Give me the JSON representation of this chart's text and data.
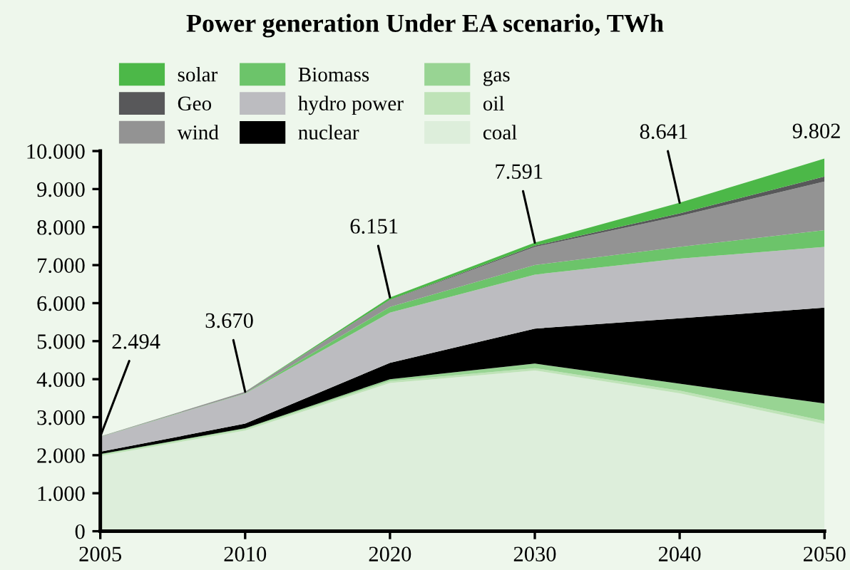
{
  "chart_data": {
    "type": "area",
    "stacked": true,
    "title": "Power generation Under EA scenario, TWh",
    "categories": [
      "2005",
      "2010",
      "2020",
      "2030",
      "2040",
      "2050"
    ],
    "series": [
      {
        "name": "coal",
        "color": "#ddeedb",
        "values": [
          1980,
          2650,
          3900,
          4230,
          3630,
          2820
        ]
      },
      {
        "name": "oil",
        "color": "#bfe3b8",
        "values": [
          30,
          40,
          50,
          60,
          70,
          80
        ]
      },
      {
        "name": "gas",
        "color": "#98d493",
        "values": [
          20,
          20,
          50,
          120,
          180,
          460
        ]
      },
      {
        "name": "nuclear",
        "color": "#000000",
        "values": [
          60,
          120,
          430,
          920,
          1720,
          2520
        ]
      },
      {
        "name": "hydro power",
        "color": "#bcbcc0",
        "values": [
          390,
          790,
          1320,
          1420,
          1570,
          1600
        ]
      },
      {
        "name": "Biomass",
        "color": "#6cc46a",
        "values": [
          4,
          10,
          150,
          250,
          310,
          440
        ]
      },
      {
        "name": "wind",
        "color": "#939393",
        "values": [
          10,
          40,
          180,
          480,
          810,
          1280
        ]
      },
      {
        "name": "Geo",
        "color": "#58585a",
        "values": [
          0,
          0,
          10,
          30,
          70,
          130
        ]
      },
      {
        "name": "solar",
        "color": "#4cb848",
        "values": [
          0,
          0,
          61,
          81,
          281,
          472
        ]
      }
    ],
    "ylim": [
      0,
      10000
    ],
    "yticks": [
      {
        "value": 0,
        "label": "0"
      },
      {
        "value": 1000,
        "label": "1.000"
      },
      {
        "value": 2000,
        "label": "2.000"
      },
      {
        "value": 3000,
        "label": "3.000"
      },
      {
        "value": 4000,
        "label": "4.000"
      },
      {
        "value": 5000,
        "label": "5.000"
      },
      {
        "value": 6000,
        "label": "6.000"
      },
      {
        "value": 7000,
        "label": "7.000"
      },
      {
        "value": 8000,
        "label": "8.000"
      },
      {
        "value": 9000,
        "label": "9.000"
      },
      {
        "value": 10000,
        "label": "10.000"
      }
    ],
    "annotations": [
      {
        "text": "2.494",
        "x": "2005",
        "y": 2494
      },
      {
        "text": "3.670",
        "x": "2010",
        "y": 3670
      },
      {
        "text": "6.151",
        "x": "2020",
        "y": 6151
      },
      {
        "text": "7.591",
        "x": "2030",
        "y": 7591
      },
      {
        "text": "8.641",
        "x": "2040",
        "y": 8641
      },
      {
        "text": "9.802",
        "x": "2050",
        "y": 9802
      }
    ],
    "grid": false,
    "legend": "top left"
  }
}
